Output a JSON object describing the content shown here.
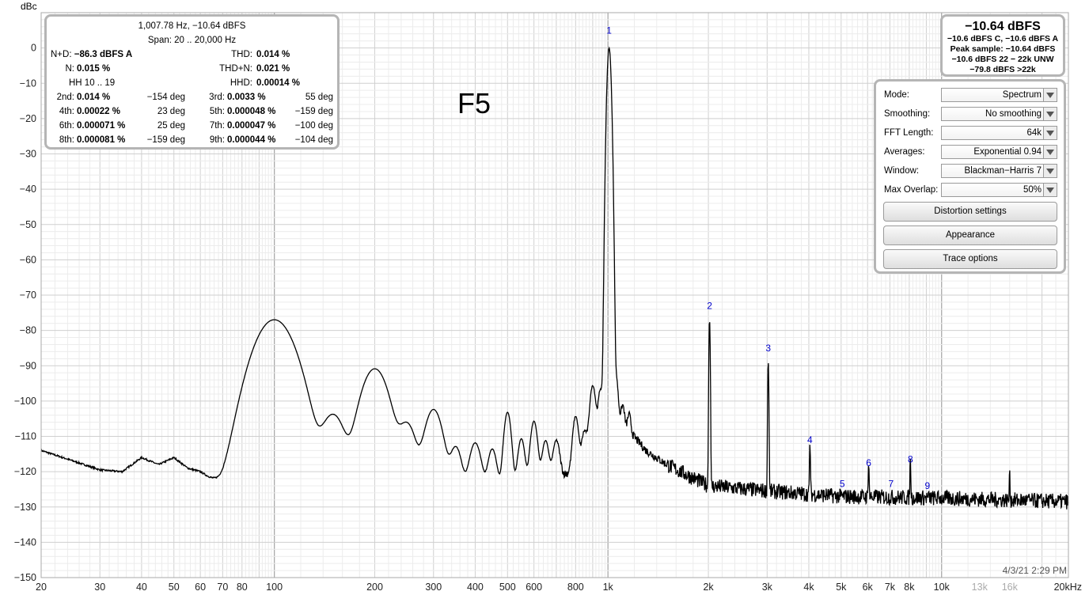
{
  "chart_data": {
    "type": "line",
    "title": "F5",
    "ylabel": "dBc",
    "xscale": "log",
    "xlim": [
      20,
      24000
    ],
    "ylim": [
      -150,
      10
    ],
    "grid": true,
    "y_ticks": [
      0,
      -10,
      -20,
      -30,
      -40,
      -50,
      -60,
      -70,
      -80,
      -90,
      -100,
      -110,
      -120,
      -130,
      -140,
      -150
    ],
    "x_ticks": [
      {
        "v": 20,
        "label": "20",
        "dim": false
      },
      {
        "v": 30,
        "label": "30",
        "dim": false
      },
      {
        "v": 40,
        "label": "40",
        "dim": false
      },
      {
        "v": 50,
        "label": "50",
        "dim": false
      },
      {
        "v": 60,
        "label": "60",
        "dim": false
      },
      {
        "v": 70,
        "label": "70",
        "dim": false
      },
      {
        "v": 80,
        "label": "80",
        "dim": false
      },
      {
        "v": 100,
        "label": "100",
        "dim": false
      },
      {
        "v": 200,
        "label": "200",
        "dim": false
      },
      {
        "v": 300,
        "label": "300",
        "dim": false
      },
      {
        "v": 400,
        "label": "400",
        "dim": false
      },
      {
        "v": 500,
        "label": "500",
        "dim": false
      },
      {
        "v": 600,
        "label": "600",
        "dim": false
      },
      {
        "v": 800,
        "label": "800",
        "dim": false
      },
      {
        "v": 1000,
        "label": "1k",
        "dim": false
      },
      {
        "v": 2000,
        "label": "2k",
        "dim": false
      },
      {
        "v": 3000,
        "label": "3k",
        "dim": false
      },
      {
        "v": 4000,
        "label": "4k",
        "dim": false
      },
      {
        "v": 5000,
        "label": "5k",
        "dim": false
      },
      {
        "v": 6000,
        "label": "6k",
        "dim": false
      },
      {
        "v": 7000,
        "label": "7k",
        "dim": false
      },
      {
        "v": 8000,
        "label": "8k",
        "dim": false
      },
      {
        "v": 10000,
        "label": "10k",
        "dim": false
      },
      {
        "v": 13000,
        "label": "13k",
        "dim": true
      },
      {
        "v": 16000,
        "label": "16k",
        "dim": true
      },
      {
        "v": 20000,
        "label": "20kHz",
        "dim": false
      }
    ],
    "markers": [
      {
        "label": "1",
        "x": 1008,
        "y": 5
      },
      {
        "label": "2",
        "x": 2016,
        "y": -73
      },
      {
        "label": "3",
        "x": 3023,
        "y": -85
      },
      {
        "label": "4",
        "x": 4031,
        "y": -111
      },
      {
        "label": "5",
        "x": 5039,
        "y": -123.5
      },
      {
        "label": "6",
        "x": 6047,
        "y": -117.5
      },
      {
        "label": "7",
        "x": 7055,
        "y": -123.5
      },
      {
        "label": "8",
        "x": 8062,
        "y": -116.5
      },
      {
        "label": "9",
        "x": 9070,
        "y": -124
      }
    ],
    "series": [
      {
        "color": "#000000",
        "baseline": [
          [
            20,
            -114
          ],
          [
            25,
            -117
          ],
          [
            30,
            -119.5
          ],
          [
            35,
            -120
          ],
          [
            40,
            -116
          ],
          [
            45,
            -118
          ],
          [
            50,
            -116
          ],
          [
            55,
            -119
          ],
          [
            60,
            -120
          ],
          [
            70,
            -124
          ],
          [
            80,
            -124
          ],
          [
            88,
            -125
          ],
          [
            95,
            -125
          ],
          [
            120,
            -125.5
          ],
          [
            150,
            -127
          ],
          [
            250,
            -126
          ],
          [
            400,
            -125
          ],
          [
            700,
            -122
          ],
          [
            850,
            -118
          ],
          [
            900,
            -112
          ],
          [
            950,
            -106
          ],
          [
            1000,
            -92
          ],
          [
            1100,
            -106
          ],
          [
            1300,
            -114
          ],
          [
            1500,
            -118
          ],
          [
            2000,
            -124
          ],
          [
            3000,
            -125.5
          ],
          [
            5000,
            -127
          ],
          [
            10000,
            -127.5
          ],
          [
            24000,
            -128.5
          ]
        ],
        "peaks": [
          {
            "f": 100,
            "db": -77,
            "w": 0.065,
            "n": 14
          },
          {
            "f": 150,
            "db": -104.5,
            "w": 0.04
          },
          {
            "f": 200,
            "db": -91,
            "w": 0.045
          },
          {
            "f": 250,
            "db": -107.5,
            "w": 0.03
          },
          {
            "f": 300,
            "db": -103,
            "w": 0.03
          },
          {
            "f": 350,
            "db": -115.5,
            "w": 0.02
          },
          {
            "f": 400,
            "db": -114,
            "w": 0.02
          },
          {
            "f": 450,
            "db": -116.5,
            "w": 0.015
          },
          {
            "f": 500,
            "db": -104,
            "w": 0.012
          },
          {
            "f": 550,
            "db": -113,
            "w": 0.012
          },
          {
            "f": 600,
            "db": -107,
            "w": 0.012
          },
          {
            "f": 650,
            "db": -114,
            "w": 0.012
          },
          {
            "f": 700,
            "db": -114,
            "w": 0.012
          },
          {
            "f": 800,
            "db": -106,
            "w": 0.01
          },
          {
            "f": 850,
            "db": -112,
            "w": 0.01
          },
          {
            "f": 900,
            "db": -97,
            "w": 0.01
          },
          {
            "f": 950,
            "db": -100,
            "w": 0.008
          },
          {
            "f": 1008,
            "db": 0,
            "w": 0.006,
            "n": 50
          },
          {
            "f": 1058,
            "db": -97,
            "w": 0.006
          },
          {
            "f": 1108,
            "db": -108,
            "w": 0.006
          },
          {
            "f": 1158,
            "db": -111,
            "w": 0.006
          },
          {
            "f": 2016,
            "db": -77,
            "w": 0.002
          },
          {
            "f": 3023,
            "db": -89,
            "w": 0.0018
          },
          {
            "f": 4031,
            "db": -114,
            "w": 0.0016
          },
          {
            "f": 6047,
            "db": -120.5,
            "w": 0.0015
          },
          {
            "f": 8062,
            "db": -119,
            "w": 0.0015
          },
          {
            "f": 16000,
            "db": -122.5,
            "w": 0.0012
          }
        ]
      }
    ],
    "timestamp": "4/3/21 2:29 PM"
  },
  "stats": {
    "header1": "1,007.78 Hz, −10.64 dBFS",
    "header2": "Span: 20 .. 20,000 Hz",
    "nd_label": "N+D:",
    "nd_value": "−86.3 dBFS A",
    "thd_label": "THD:",
    "thd_value": "0.014 %",
    "n_label": "N:",
    "n_value": "0.015 %",
    "thdn_label": "THD+N:",
    "thdn_value": "0.021 %",
    "hh_label": "HH 10 .. 19",
    "hhd_label": "HHD:",
    "hhd_value": "0.00014 %",
    "harmonics": [
      {
        "label": "2nd:",
        "value": "0.014 %",
        "phase": "−154 deg"
      },
      {
        "label": "3rd:",
        "value": "0.0033 %",
        "phase": "55 deg"
      },
      {
        "label": "4th:",
        "value": "0.00022 %",
        "phase": "23 deg"
      },
      {
        "label": "5th:",
        "value": "0.000048 %",
        "phase": "−159 deg"
      },
      {
        "label": "6th:",
        "value": "0.000071 %",
        "phase": "25 deg"
      },
      {
        "label": "7th:",
        "value": "0.000047 %",
        "phase": "−100 deg"
      },
      {
        "label": "8th:",
        "value": "0.000081 %",
        "phase": "−159 deg"
      },
      {
        "label": "9th:",
        "value": "0.000044 %",
        "phase": "−104 deg"
      }
    ]
  },
  "meter": {
    "main": "−10.64 dBFS",
    "line1": "−10.6 dBFS C, −10.6 dBFS A",
    "line2": "Peak sample: −10.64 dBFS",
    "line3": "−10.6 dBFS 22 − 22k UNW",
    "line4": "−79.8 dBFS >22k"
  },
  "settings": {
    "mode_label": "Mode:",
    "mode_value": "Spectrum",
    "smoothing_label": "Smoothing:",
    "smoothing_value": "No  smoothing",
    "fft_label": "FFT Length:",
    "fft_value": "64k",
    "averages_label": "Averages:",
    "averages_value": "Exponential 0.94",
    "window_label": "Window:",
    "window_value": "Blackman−Harris 7",
    "overlap_label": "Max Overlap:",
    "overlap_value": "50%",
    "distortion_button": "Distortion settings",
    "appearance_button": "Appearance",
    "trace_button": "Trace options"
  },
  "colors": {
    "marker": "#0000cc",
    "grid_minor": "#e0e0e0",
    "grid_major": "#bdbdbd",
    "trace": "#000000"
  }
}
